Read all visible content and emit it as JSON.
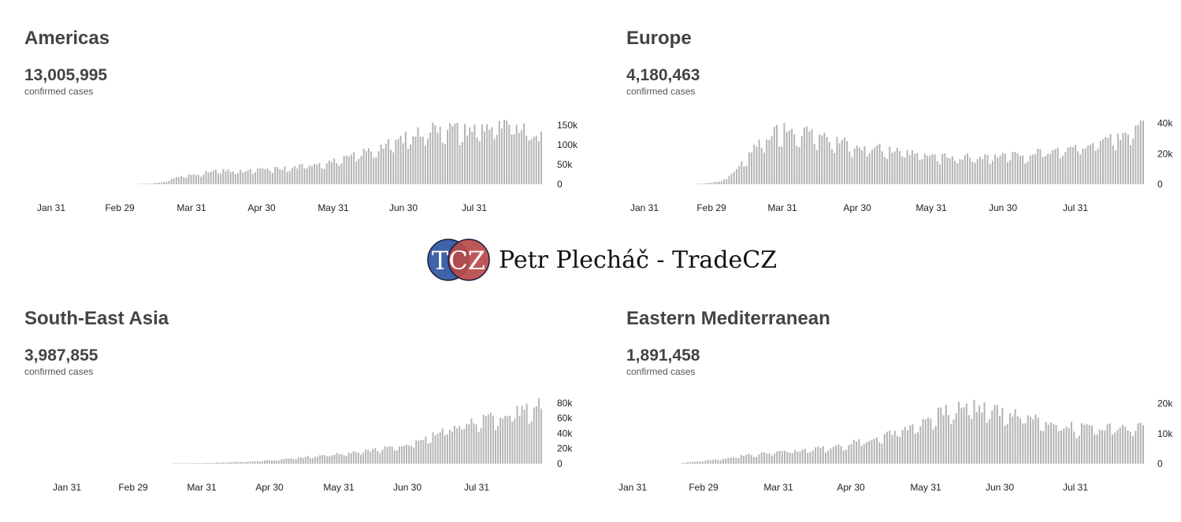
{
  "panels": [
    {
      "id": "americas",
      "title": "Americas",
      "total": "13,005,995",
      "subtitle": "confirmed cases",
      "ymax": 170000,
      "yticks": [
        {
          "label": "150k",
          "value": 150000
        },
        {
          "label": "100k",
          "value": 100000
        },
        {
          "label": "50k",
          "value": 50000
        },
        {
          "label": "0",
          "value": 0
        }
      ],
      "xticks": [
        {
          "label": "Jan 31",
          "day": 0
        },
        {
          "label": "Feb 29",
          "day": 29
        },
        {
          "label": "Mar 31",
          "day": 60
        },
        {
          "label": "Apr 30",
          "day": 90
        },
        {
          "label": "May 31",
          "day": 121
        },
        {
          "label": "Jun 30",
          "day": 151
        },
        {
          "label": "Jul 31",
          "day": 182
        }
      ],
      "curve": [
        [
          0,
          0
        ],
        [
          38,
          0
        ],
        [
          45,
          1000
        ],
        [
          52,
          4000
        ],
        [
          58,
          18000
        ],
        [
          65,
          25000
        ],
        [
          75,
          35000
        ],
        [
          85,
          33000
        ],
        [
          95,
          40000
        ],
        [
          105,
          42000
        ],
        [
          115,
          55000
        ],
        [
          125,
          62000
        ],
        [
          135,
          85000
        ],
        [
          145,
          105000
        ],
        [
          155,
          130000
        ],
        [
          165,
          150000
        ],
        [
          175,
          140000
        ],
        [
          185,
          150000
        ],
        [
          195,
          148000
        ],
        [
          206,
          120000
        ]
      ]
    },
    {
      "id": "europe",
      "title": "Europe",
      "total": "4,180,463",
      "subtitle": "confirmed cases",
      "ymax": 44000,
      "yticks": [
        {
          "label": "40k",
          "value": 40000
        },
        {
          "label": "20k",
          "value": 20000
        },
        {
          "label": "0",
          "value": 0
        }
      ],
      "xticks": [
        {
          "label": "Jan 31",
          "day": 0
        },
        {
          "label": "Feb 29",
          "day": 29
        },
        {
          "label": "Mar 31",
          "day": 60
        },
        {
          "label": "Apr 30",
          "day": 90
        },
        {
          "label": "May 31",
          "day": 121
        },
        {
          "label": "Jun 30",
          "day": 151
        },
        {
          "label": "Jul 31",
          "day": 182
        }
      ],
      "curve": [
        [
          0,
          0
        ],
        [
          22,
          0
        ],
        [
          30,
          300
        ],
        [
          38,
          2000
        ],
        [
          45,
          12000
        ],
        [
          52,
          25000
        ],
        [
          58,
          35000
        ],
        [
          65,
          37000
        ],
        [
          72,
          34000
        ],
        [
          80,
          30000
        ],
        [
          90,
          26000
        ],
        [
          100,
          24000
        ],
        [
          110,
          21000
        ],
        [
          120,
          19000
        ],
        [
          130,
          18000
        ],
        [
          140,
          18500
        ],
        [
          150,
          19000
        ],
        [
          160,
          20000
        ],
        [
          170,
          22000
        ],
        [
          180,
          25000
        ],
        [
          190,
          29000
        ],
        [
          200,
          35000
        ],
        [
          206,
          39000
        ]
      ]
    },
    {
      "id": "south-east-asia",
      "title": "South-East Asia",
      "total": "3,987,855",
      "subtitle": "confirmed cases",
      "ymax": 87000,
      "yticks": [
        {
          "label": "80k",
          "value": 80000
        },
        {
          "label": "60k",
          "value": 60000
        },
        {
          "label": "40k",
          "value": 40000
        },
        {
          "label": "20k",
          "value": 20000
        },
        {
          "label": "0",
          "value": 0
        }
      ],
      "xticks": [
        {
          "label": "Jan 31",
          "day": 0
        },
        {
          "label": "Feb 29",
          "day": 29
        },
        {
          "label": "Mar 31",
          "day": 60
        },
        {
          "label": "Apr 30",
          "day": 90
        },
        {
          "label": "May 31",
          "day": 121
        },
        {
          "label": "Jun 30",
          "day": 151
        },
        {
          "label": "Jul 31",
          "day": 182
        }
      ],
      "curve": [
        [
          0,
          0
        ],
        [
          50,
          0
        ],
        [
          55,
          300
        ],
        [
          65,
          800
        ],
        [
          75,
          1800
        ],
        [
          85,
          3000
        ],
        [
          95,
          5000
        ],
        [
          105,
          8000
        ],
        [
          115,
          11000
        ],
        [
          125,
          14000
        ],
        [
          135,
          18000
        ],
        [
          145,
          23000
        ],
        [
          155,
          31000
        ],
        [
          165,
          42000
        ],
        [
          175,
          55000
        ],
        [
          185,
          63000
        ],
        [
          195,
          68000
        ],
        [
          206,
          78000
        ]
      ]
    },
    {
      "id": "eastern-mediterranean",
      "title": "Eastern Mediterranean",
      "total": "1,891,458",
      "subtitle": "confirmed cases",
      "ymax": 22000,
      "yticks": [
        {
          "label": "20k",
          "value": 20000
        },
        {
          "label": "10k",
          "value": 10000
        },
        {
          "label": "0",
          "value": 0
        }
      ],
      "xticks": [
        {
          "label": "Jan 31",
          "day": 0
        },
        {
          "label": "Feb 29",
          "day": 29
        },
        {
          "label": "Mar 31",
          "day": 60
        },
        {
          "label": "Apr 30",
          "day": 90
        },
        {
          "label": "May 31",
          "day": 121
        },
        {
          "label": "Jun 30",
          "day": 151
        },
        {
          "label": "Jul 31",
          "day": 182
        }
      ],
      "curve": [
        [
          0,
          0
        ],
        [
          22,
          0
        ],
        [
          28,
          400
        ],
        [
          40,
          1500
        ],
        [
          50,
          2800
        ],
        [
          60,
          3900
        ],
        [
          70,
          4300
        ],
        [
          80,
          5200
        ],
        [
          90,
          6500
        ],
        [
          100,
          8500
        ],
        [
          110,
          11000
        ],
        [
          120,
          14500
        ],
        [
          130,
          18000
        ],
        [
          138,
          19500
        ],
        [
          145,
          19000
        ],
        [
          150,
          18000
        ],
        [
          160,
          16000
        ],
        [
          170,
          14000
        ],
        [
          180,
          12000
        ],
        [
          190,
          12500
        ],
        [
          206,
          12500
        ]
      ]
    }
  ],
  "watermark": {
    "mark_text": "TCZ",
    "text": "Petr Plecháč - TradeCZ",
    "colors": {
      "blue": "#3f63a8",
      "red": "#b94a4a",
      "dark": "#1a1a3a"
    }
  },
  "chart_data": [
    {
      "type": "bar",
      "title": "Americas",
      "subtitle": "13,005,995 confirmed cases",
      "x_range": [
        "Jan 31",
        "Aug 25"
      ],
      "ylim": [
        0,
        170000
      ],
      "daily_values_approx": {
        "Jan 31": 0,
        "Mar 31": 25000,
        "Apr 30": 33000,
        "May 31": 62000,
        "Jun 30": 110000,
        "Jul 31": 150000,
        "Aug 25": 120000
      }
    },
    {
      "type": "bar",
      "title": "Europe",
      "subtitle": "4,180,463 confirmed cases",
      "x_range": [
        "Jan 31",
        "Aug 25"
      ],
      "ylim": [
        0,
        44000
      ],
      "daily_values_approx": {
        "Jan 31": 0,
        "Mar 31": 37000,
        "Apr 30": 26000,
        "May 31": 19000,
        "Jun 30": 19000,
        "Jul 31": 25000,
        "Aug 25": 39000
      }
    },
    {
      "type": "bar",
      "title": "South-East Asia",
      "subtitle": "3,987,855 confirmed cases",
      "x_range": [
        "Jan 31",
        "Aug 25"
      ],
      "ylim": [
        0,
        87000
      ],
      "daily_values_approx": {
        "Jan 31": 0,
        "Mar 31": 800,
        "Apr 30": 5000,
        "May 31": 13000,
        "Jun 30": 27000,
        "Jul 31": 60000,
        "Aug 25": 78000
      }
    },
    {
      "type": "bar",
      "title": "Eastern Mediterranean",
      "subtitle": "1,891,458 confirmed cases",
      "x_range": [
        "Jan 31",
        "Aug 25"
      ],
      "ylim": [
        0,
        22000
      ],
      "daily_values_approx": {
        "Jan 31": 0,
        "Mar 31": 3900,
        "Apr 30": 6500,
        "May 31": 14500,
        "Jun 30": 17000,
        "Jul 31": 12000,
        "Aug 25": 12500
      }
    }
  ]
}
